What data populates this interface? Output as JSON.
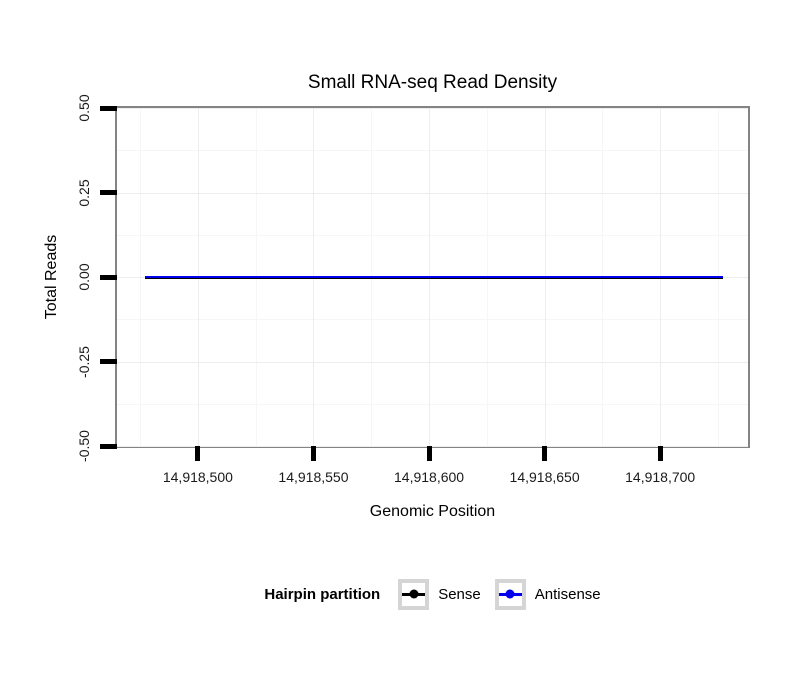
{
  "chart_data": {
    "type": "line",
    "title": "Small RNA-seq Read Density",
    "xlabel": "Genomic Position",
    "ylabel": "Total Reads",
    "xlim": [
      14918465,
      14918738
    ],
    "ylim": [
      -0.5,
      0.5
    ],
    "x_major_ticks": [
      14918500,
      14918550,
      14918600,
      14918650,
      14918700
    ],
    "x_tick_labels": [
      "14,918,500",
      "14,918,550",
      "14,918,600",
      "14,918,650",
      "14,918,700"
    ],
    "x_minor_ticks": [
      14918475,
      14918525,
      14918575,
      14918625,
      14918675,
      14918725
    ],
    "y_major_ticks": [
      0.5,
      0.25,
      0,
      -0.25,
      -0.5
    ],
    "y_tick_labels": [
      "0.50",
      "0.25",
      "0.00",
      "-0.25",
      "-0.50"
    ],
    "y_minor_ticks": [
      0.375,
      0.125,
      -0.125,
      -0.375
    ],
    "grid": true,
    "legend_position": "bottom",
    "series": [
      {
        "name": "Sense",
        "color": "#000000",
        "line_width": 3,
        "x": [
          14918477,
          14918727
        ],
        "y": [
          0,
          0
        ]
      },
      {
        "name": "Antisense",
        "color": "#0000ee",
        "line_width": 1.6,
        "x": [
          14918477,
          14918727
        ],
        "y": [
          0,
          0
        ]
      }
    ],
    "legend": {
      "title": "Hairpin partition",
      "entries": [
        {
          "label": "Sense",
          "color": "#000000"
        },
        {
          "label": "Antisense",
          "color": "#0000ee"
        }
      ]
    }
  },
  "colors": {
    "background": "#ffffff",
    "panel_border": "#848484",
    "tick": "#000000",
    "grid_major": "#ededed",
    "grid_minor": "#f6f6f6",
    "legend_key_border": "#d5d5d5"
  }
}
